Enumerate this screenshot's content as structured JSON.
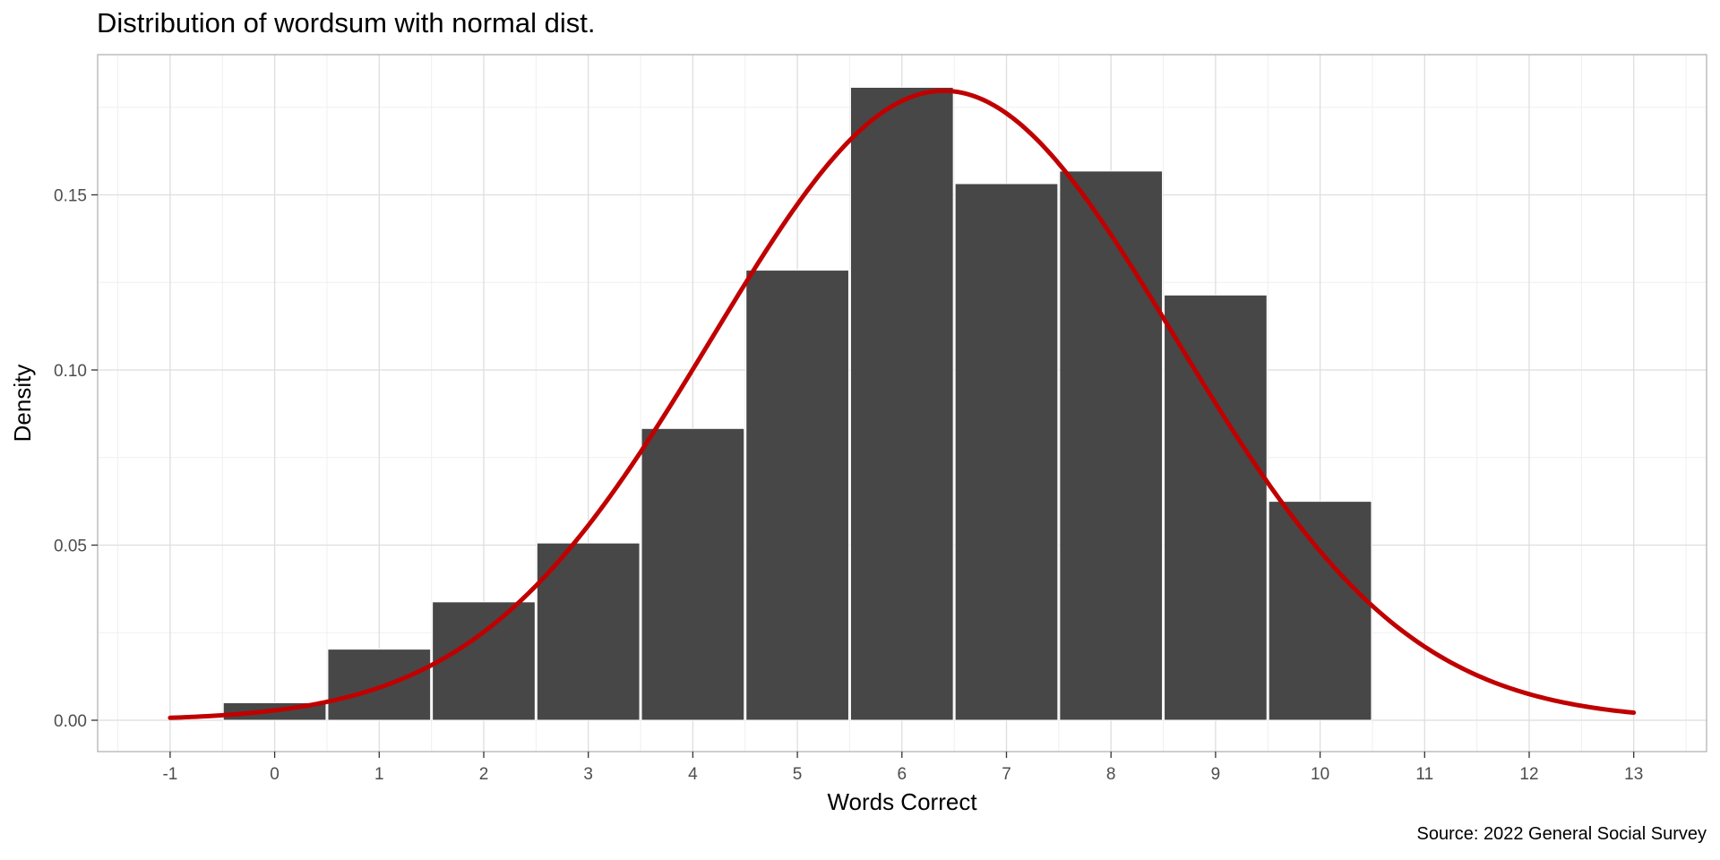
{
  "chart_data": {
    "type": "bar",
    "title": "Distribution of wordsum with normal dist.",
    "caption": "Source: 2022 General Social Survey",
    "xlabel": "Words Correct",
    "ylabel": "Density",
    "xlim": [
      -1,
      13
    ],
    "ylim": [
      0,
      0.18
    ],
    "x_ticks": [
      "-1",
      "0",
      "1",
      "2",
      "3",
      "4",
      "5",
      "6",
      "7",
      "8",
      "9",
      "10",
      "11",
      "12",
      "13"
    ],
    "y_ticks": [
      "0.00",
      "0.05",
      "0.10",
      "0.15"
    ],
    "grid": true,
    "series": [
      {
        "type": "histogram",
        "x": [
          0,
          1,
          2,
          3,
          4,
          5,
          6,
          7,
          8,
          9,
          10
        ],
        "values": [
          0.005,
          0.0203,
          0.0338,
          0.0506,
          0.0833,
          0.1285,
          0.1807,
          0.1532,
          0.1568,
          0.1214,
          0.0625
        ],
        "color": "#474747"
      },
      {
        "type": "line",
        "distribution": "normal",
        "mean": 6.4,
        "sd": 2.22,
        "x_range": [
          -1,
          13
        ],
        "color": "#c00000"
      }
    ]
  },
  "colors": {
    "bar": "#474747",
    "curve": "#c00000",
    "grid_major": "#dedede",
    "grid_minor": "#efefef",
    "border": "#b3b3b3"
  }
}
